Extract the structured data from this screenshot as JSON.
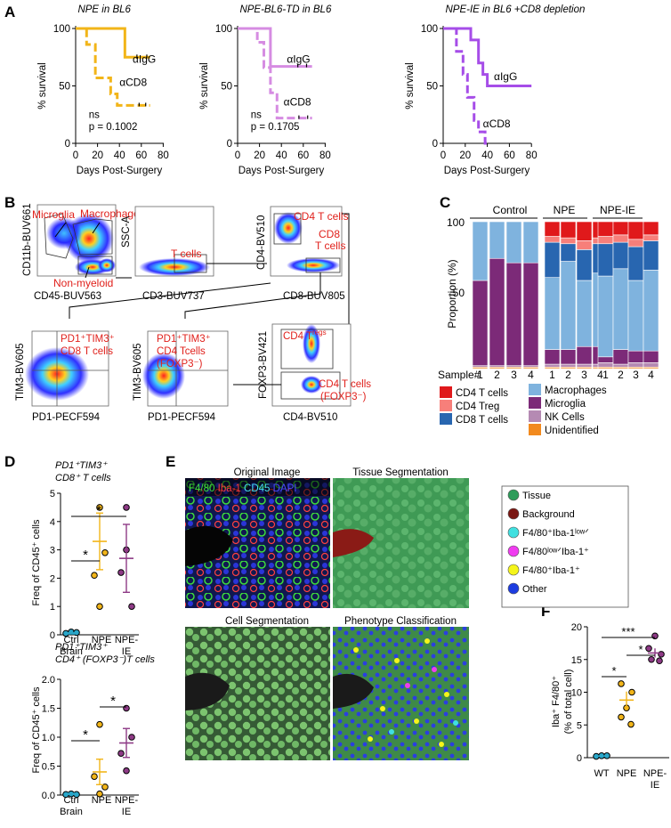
{
  "panels": {
    "A": "A",
    "B": "B",
    "C": "C",
    "D": "D",
    "E": "E",
    "F": "F"
  },
  "panel_a": {
    "ylabel": "% survival",
    "xlabel": "Days Post-Surgery",
    "yticks": [
      "0",
      "50",
      "100"
    ],
    "xticks": [
      "0",
      "20",
      "40",
      "60",
      "80"
    ],
    "plots": [
      {
        "title": "NPE in BL6",
        "igg": "αIgG",
        "cd8": "αCD8",
        "ns": "ns",
        "p": "p = 0.1002",
        "color": "#f2b519"
      },
      {
        "title": "NPE-BL6-TD in BL6",
        "igg": "αIgG",
        "cd8": "αCD8",
        "ns": "ns",
        "p": "p = 0.1705",
        "color": "#d68ce2"
      },
      {
        "title": "NPE-IE in BL6 +CD8 depletion",
        "igg": "αIgG",
        "cd8": "αCD8",
        "color": "#a64de8"
      }
    ]
  },
  "panel_b": {
    "row1": [
      {
        "ylabel": "CD11b-BUV661",
        "xlabel": "CD45-BUV563",
        "gates": [
          "Microglia",
          "Macrophage",
          "Non-myeloid"
        ]
      },
      {
        "ylabel": "SSC-A",
        "xlabel": "CD3-BUV737",
        "gates": [
          "T cells"
        ]
      },
      {
        "ylabel": "CD4-BV510",
        "xlabel": "CD8-BUV805",
        "gates": [
          "CD4 T cells",
          "CD8",
          "T cells"
        ]
      }
    ],
    "row2": [
      {
        "ylabel": "TIM3-BV605",
        "xlabel": "PD1-PECF594",
        "gates": [
          "PD1⁺TIM3⁺",
          "CD8 T cells"
        ]
      },
      {
        "ylabel": "TIM3-BV605",
        "xlabel": "PD1-PECF594",
        "gates": [
          "PD1⁺TIM3⁺",
          "CD4 Tcells",
          "(FOXP3⁻)"
        ]
      },
      {
        "ylabel": "FOXP3-BV421",
        "xlabel": "CD4-BV510",
        "gates": [
          "CD4 T",
          "regs",
          "CD4 T cells",
          "(FOXP3⁻)"
        ]
      }
    ]
  },
  "panel_c": {
    "groups": [
      "Control",
      "NPE",
      "NPE-IE"
    ],
    "ylabel": "Proportion (%)",
    "yticks": [
      "100",
      "50"
    ],
    "sample_label": "Sample#",
    "sample_ticks": [
      "1",
      "2",
      "3",
      "4"
    ],
    "legend": [
      {
        "label": "CD4 T cells",
        "color": "#e0191b"
      },
      {
        "label": "CD4 Treg",
        "color": "#f77f7a"
      },
      {
        "label": "CD8 T cells",
        "color": "#2866b0"
      },
      {
        "label": "Macrophages",
        "color": "#7fb3de"
      },
      {
        "label": "Microglia",
        "color": "#7c2a78"
      },
      {
        "label": "NK Cells",
        "color": "#b58ab3"
      },
      {
        "label": "Unidentified",
        "color": "#f28a1e"
      }
    ]
  },
  "panel_d": {
    "top_title_1": "PD1⁺TIM3⁺",
    "top_title_2": "CD8⁺ T cells",
    "bottom_title_1": "PD1⁺TIM3⁺",
    "bottom_title_2": "CD4⁺ (FOXP3⁻)T cells",
    "ylabel": "Freq of CD45⁺ cells",
    "top_yticks": [
      "0",
      "1",
      "2",
      "3",
      "4",
      "5"
    ],
    "bottom_yticks": [
      "0.0",
      "0.5",
      "1.0",
      "1.5",
      "2.0"
    ],
    "x1": "Ctrl",
    "x1b": "Brain",
    "x2": "NPE",
    "x3": "NPE-",
    "x3b": "IE",
    "sig": "*"
  },
  "panel_e": {
    "titles": [
      "Original Image",
      "Tissue Segmentation",
      "Cell Segmentation",
      "Phenotype Classification"
    ],
    "channels": [
      {
        "t": "F4/80",
        "c": "#3de03d"
      },
      {
        "t": "Iba-1",
        "c": "#ff3b3b"
      },
      {
        "t": "CD45",
        "c": "#46e1f0"
      },
      {
        "t": "DAPI",
        "c": "#4a4aff"
      }
    ],
    "legend": [
      {
        "label": "Tissue",
        "color": "#2e9c5a"
      },
      {
        "label": "Background",
        "color": "#7a1712"
      },
      {
        "label": "F4/80⁺Iba-1ˡᵒʷᐟ",
        "color": "#40e0e0"
      },
      {
        "label": "F4/80ˡᵒʷᐟIba-1⁺",
        "color": "#f03cf0"
      },
      {
        "label": "F4/80⁺Iba-1⁺",
        "color": "#f5f51a"
      },
      {
        "label": "Other",
        "color": "#1c3ce0"
      }
    ]
  },
  "panel_f": {
    "ylabel_1": "Iba⁺ F4/80⁺",
    "ylabel_2": "(% of total cell)",
    "yticks": [
      "0",
      "5",
      "10",
      "15",
      "20"
    ],
    "x1": "WT",
    "x2": "NPE",
    "x3": "NPE-",
    "x3b": "IE",
    "sig1": "*",
    "sig2": "***",
    "sig3": "*"
  }
}
